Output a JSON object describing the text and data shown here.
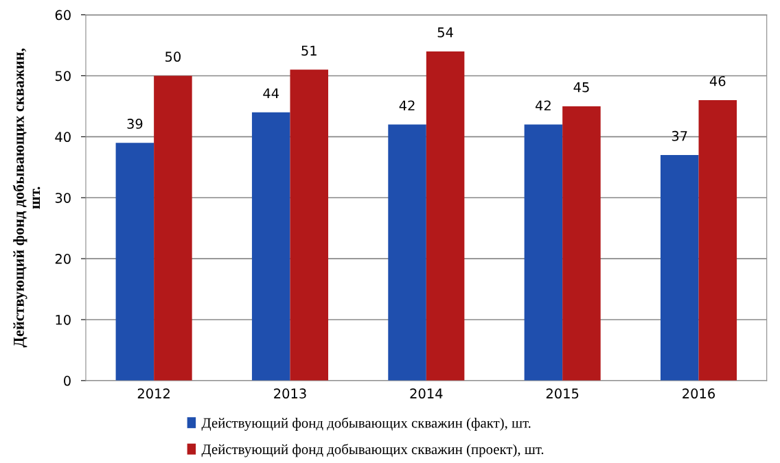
{
  "chart_data": {
    "type": "bar",
    "ylabel": "Действующий фонд добывающих скважин,\nшт.",
    "categories": [
      "2012",
      "2013",
      "2014",
      "2015",
      "2016"
    ],
    "series": [
      {
        "name": "Действующий фонд добывающих скважин (факт), шт.",
        "color": "#1f4fae",
        "values": [
          39,
          44,
          42,
          42,
          37
        ]
      },
      {
        "name": "Действующий фонд добывающих скважин (проект), шт.",
        "color": "#b3191a",
        "values": [
          50,
          51,
          54,
          45,
          46
        ]
      }
    ],
    "ylim": [
      0,
      60
    ],
    "yticks": [
      0,
      10,
      20,
      30,
      40,
      50,
      60
    ],
    "grid": "y",
    "legend": "bottom",
    "data_labels": true
  }
}
